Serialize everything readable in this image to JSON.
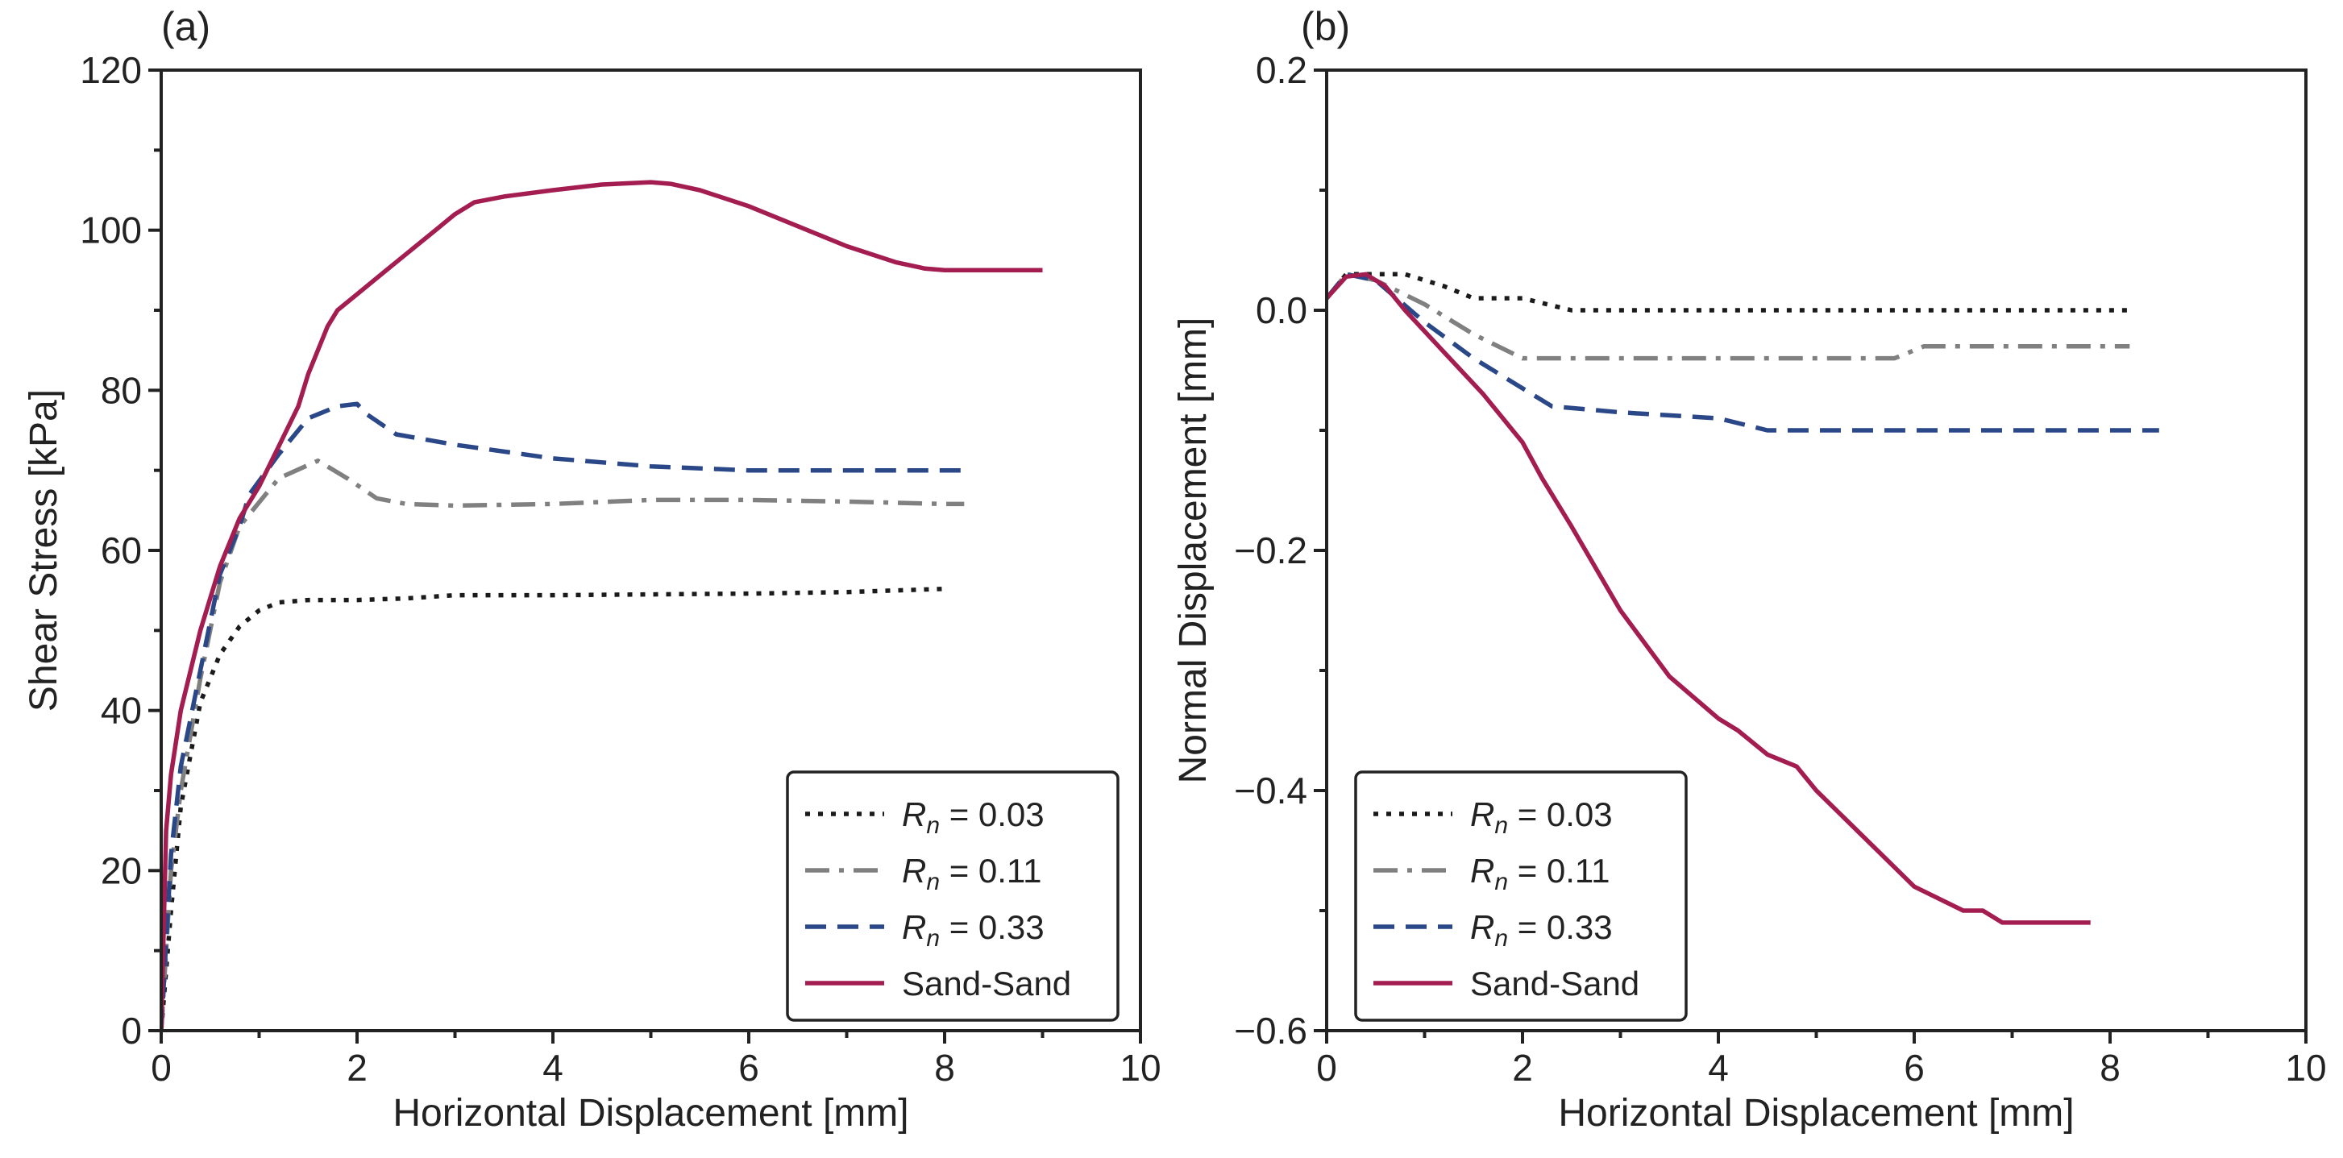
{
  "colors": {
    "r003": "#1a1a1a",
    "r011": "#808080",
    "r033": "#2a4788",
    "sand": "#a31d50",
    "axis": "#222222"
  },
  "chart_data": [
    {
      "type": "line",
      "panel_label": "(a)",
      "title": "",
      "xlabel": "Horizontal Displacement [mm]",
      "ylabel": "Shear Stress [kPa]",
      "xlim": [
        0,
        10
      ],
      "ylim": [
        0,
        120
      ],
      "xticks": [
        0,
        2,
        4,
        6,
        8,
        10
      ],
      "yticks": [
        0,
        20,
        40,
        60,
        80,
        100,
        120
      ],
      "xminor": 1,
      "yminor": 10,
      "grid": false,
      "legend_position": "bottom-right",
      "series": [
        {
          "key": "r003",
          "dash": "dotted",
          "legend": {
            "var": "R",
            "sub": "n",
            "rest": " = 0.03"
          },
          "x": [
            0,
            0.1,
            0.2,
            0.4,
            0.6,
            0.8,
            1.0,
            1.2,
            1.5,
            2.0,
            2.5,
            3.0,
            4.0,
            5.0,
            6.0,
            7.0,
            8.0
          ],
          "y": [
            0,
            15,
            28,
            41,
            47,
            50.5,
            52.5,
            53.5,
            53.8,
            53.8,
            54,
            54.4,
            54.4,
            54.5,
            54.6,
            54.8,
            55.2
          ]
        },
        {
          "key": "r011",
          "dash": "dashdot",
          "legend": {
            "var": "R",
            "sub": "n",
            "rest": " = 0.11"
          },
          "x": [
            0,
            0.1,
            0.2,
            0.4,
            0.6,
            0.8,
            1.0,
            1.2,
            1.6,
            1.9,
            2.2,
            2.5,
            3.0,
            4.0,
            5.0,
            6.0,
            7.0,
            8.0,
            8.2
          ],
          "y": [
            0,
            20,
            30,
            44,
            56,
            63,
            66,
            69,
            71.2,
            69,
            66.5,
            65.8,
            65.6,
            65.8,
            66.3,
            66.3,
            66.1,
            65.8,
            65.8
          ]
        },
        {
          "key": "r033",
          "dash": "dashed",
          "legend": {
            "var": "R",
            "sub": "n",
            "rest": " = 0.33"
          },
          "x": [
            0,
            0.1,
            0.2,
            0.4,
            0.6,
            0.8,
            0.9,
            1.2,
            1.5,
            1.8,
            2.0,
            2.1,
            2.4,
            3.0,
            4.0,
            5.0,
            6.0,
            7.0,
            8.0,
            8.2
          ],
          "y": [
            0,
            22,
            33,
            45,
            57,
            63,
            67,
            72,
            76.5,
            78,
            78.3,
            77,
            74.5,
            73.2,
            71.5,
            70.5,
            70,
            70,
            70,
            70
          ]
        },
        {
          "key": "sand",
          "dash": "solid",
          "legend": {
            "var": "",
            "sub": "",
            "rest": "Sand-Sand"
          },
          "x": [
            0,
            0.05,
            0.1,
            0.2,
            0.4,
            0.6,
            0.8,
            1.0,
            1.2,
            1.4,
            1.5,
            1.7,
            1.8,
            2.0,
            2.3,
            2.6,
            2.8,
            3.0,
            3.2,
            3.5,
            4.0,
            4.5,
            5.0,
            5.2,
            5.5,
            6.0,
            6.5,
            7.0,
            7.5,
            7.8,
            8.0,
            8.3,
            9.0
          ],
          "y": [
            0,
            25,
            32,
            40,
            50,
            58,
            64,
            68,
            73,
            78,
            82,
            88,
            90,
            92,
            95,
            98,
            100,
            102,
            103.5,
            104.2,
            105,
            105.7,
            106,
            105.8,
            105,
            103,
            100.5,
            98,
            96,
            95.2,
            95,
            95,
            95
          ]
        }
      ]
    },
    {
      "type": "line",
      "panel_label": "(b)",
      "title": "",
      "xlabel": "Horizontal Displacement [mm]",
      "ylabel": "Normal Displacement [mm]",
      "xlim": [
        0,
        10
      ],
      "ylim": [
        -0.6,
        0.2
      ],
      "xticks": [
        0,
        2,
        4,
        6,
        8,
        10
      ],
      "yticks": [
        -0.6,
        -0.4,
        -0.2,
        0.0,
        0.2
      ],
      "ytick_labels": [
        "−0.6",
        "−0.4",
        "−0.2",
        "0.0",
        "0.2"
      ],
      "xminor": 1,
      "yminor": 0.1,
      "grid": false,
      "legend_position": "bottom-left",
      "series": [
        {
          "key": "r003",
          "dash": "dotted",
          "legend": {
            "var": "R",
            "sub": "n",
            "rest": " = 0.03"
          },
          "x": [
            0,
            0.2,
            0.8,
            1.2,
            1.5,
            2.0,
            2.5,
            8.2
          ],
          "y": [
            0.01,
            0.03,
            0.03,
            0.02,
            0.01,
            0.01,
            0,
            0
          ]
        },
        {
          "key": "r011",
          "dash": "dashdot",
          "legend": {
            "var": "R",
            "sub": "n",
            "rest": " = 0.11"
          },
          "x": [
            0,
            0.2,
            0.5,
            1.0,
            1.5,
            2.0,
            4.0,
            5.8,
            6.1,
            8.2
          ],
          "y": [
            0.01,
            0.03,
            0.025,
            0.005,
            -0.02,
            -0.04,
            -0.04,
            -0.04,
            -0.03,
            -0.03
          ]
        },
        {
          "key": "r033",
          "dash": "dashed",
          "legend": {
            "var": "R",
            "sub": "n",
            "rest": " = 0.33"
          },
          "x": [
            0,
            0.2,
            0.5,
            1.0,
            1.5,
            2.0,
            2.3,
            3.0,
            4.0,
            4.5,
            8.5
          ],
          "y": [
            0.01,
            0.03,
            0.025,
            -0.01,
            -0.04,
            -0.065,
            -0.08,
            -0.085,
            -0.09,
            -0.1,
            -0.1
          ]
        },
        {
          "key": "sand",
          "dash": "solid",
          "legend": {
            "var": "",
            "sub": "",
            "rest": "Sand-Sand"
          },
          "x": [
            0,
            0.2,
            0.4,
            0.6,
            0.8,
            1.2,
            1.6,
            1.9,
            2.0,
            2.2,
            2.5,
            3.0,
            3.5,
            4.0,
            4.2,
            4.5,
            4.8,
            5.0,
            5.5,
            6.0,
            6.5,
            6.7,
            6.9,
            7.8
          ],
          "y": [
            0.01,
            0.028,
            0.03,
            0.02,
            0,
            -0.035,
            -0.07,
            -0.1,
            -0.11,
            -0.14,
            -0.18,
            -0.25,
            -0.305,
            -0.34,
            -0.35,
            -0.37,
            -0.38,
            -0.4,
            -0.44,
            -0.48,
            -0.5,
            -0.5,
            -0.51,
            -0.51
          ]
        }
      ]
    }
  ]
}
